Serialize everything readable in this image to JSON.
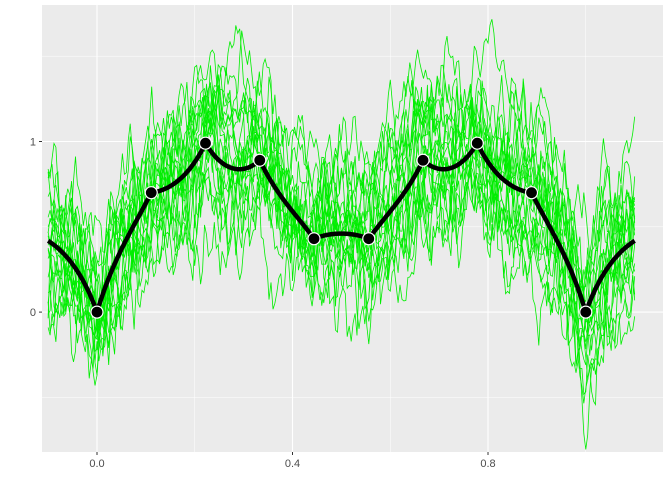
{
  "chart_data": {
    "type": "line",
    "title": "",
    "xlabel": "",
    "ylabel": "",
    "xlim": [
      -0.1125,
      1.158
    ],
    "ylim": [
      -0.82,
      1.8
    ],
    "x_ticks": [
      0.0,
      0.4,
      0.8
    ],
    "x_tick_labels": [
      "0.0",
      "0.4",
      "0.8"
    ],
    "y_ticks": [
      0,
      1
    ],
    "y_tick_labels": [
      "0",
      "1"
    ],
    "grid": true,
    "background": "#ebebeb",
    "observed_points": {
      "x": [
        0,
        0.111,
        0.222,
        0.333,
        0.444,
        0.556,
        0.667,
        0.778,
        0.889,
        1.0
      ],
      "y": [
        0,
        0.7,
        0.99,
        0.89,
        0.43,
        0.43,
        0.89,
        0.99,
        0.7,
        0
      ],
      "color": "#000000"
    },
    "mean_line": {
      "x_range": [
        -0.1,
        1.1
      ],
      "color": "#000000"
    },
    "sample_paths": {
      "count": 20,
      "color": "#00ee00",
      "x_range": [
        -0.1,
        1.1
      ]
    }
  }
}
